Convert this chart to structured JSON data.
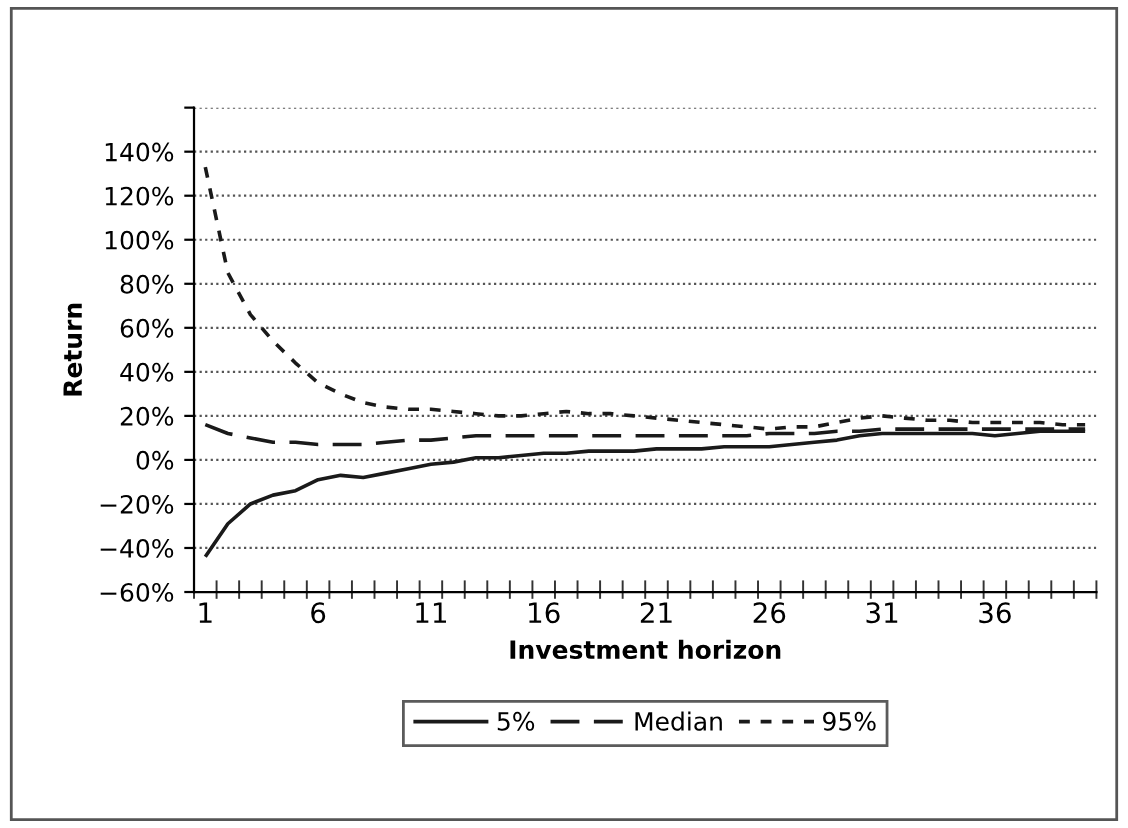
{
  "chart_data": {
    "type": "line",
    "categories": [
      "1",
      null,
      null,
      null,
      null,
      "6",
      null,
      null,
      null,
      null,
      "11",
      null,
      null,
      null,
      null,
      "16",
      null,
      null,
      null,
      null,
      "21",
      null,
      null,
      null,
      null,
      "26",
      null,
      null,
      null,
      null,
      "31",
      null,
      null,
      null,
      null,
      "36",
      null,
      null,
      null,
      null
    ],
    "series": [
      {
        "name": "5%",
        "color": "#1a1a1a",
        "line_style": "solid",
        "values": [
          -44,
          -29,
          -20,
          -16,
          -14,
          -9,
          -7,
          -8,
          -6,
          -4,
          -2,
          -1,
          1,
          1,
          2,
          3,
          3,
          4,
          4,
          4,
          5,
          5,
          5,
          6,
          6,
          6,
          7,
          8,
          9,
          11,
          12,
          12,
          12,
          12,
          12,
          11,
          12,
          13,
          13,
          13
        ]
      },
      {
        "name": "Median",
        "color": "#1a1a1a",
        "line_style": "dashed",
        "values": [
          16,
          12,
          10,
          8,
          8,
          7,
          7,
          7,
          8,
          9,
          9,
          10,
          11,
          11,
          11,
          11,
          11,
          11,
          11,
          11,
          11,
          11,
          11,
          11,
          11,
          12,
          12,
          12,
          13,
          13,
          14,
          14,
          14,
          14,
          14,
          14,
          14,
          14,
          14,
          14
        ]
      },
      {
        "name": "95%",
        "color": "#1a1a1a",
        "line_style": "dotted",
        "values": [
          133,
          85,
          66,
          54,
          44,
          35,
          30,
          26,
          24,
          23,
          23,
          22,
          21,
          20,
          20,
          21,
          22,
          21,
          21,
          20,
          19,
          18,
          17,
          16,
          15,
          14,
          15,
          15,
          17,
          19,
          20,
          19,
          18,
          18,
          17,
          17,
          17,
          17,
          16,
          16
        ]
      }
    ],
    "xlabel": "Investment horizon",
    "ylabel": "Return",
    "ylim": [
      -60,
      160
    ],
    "yticks": [
      {
        "value": -60,
        "label": "−60%"
      },
      {
        "value": -40,
        "label": "−40%"
      },
      {
        "value": -20,
        "label": "−20%"
      },
      {
        "value": 0,
        "label": "0%"
      },
      {
        "value": 20,
        "label": "20%"
      },
      {
        "value": 40,
        "label": "40%"
      },
      {
        "value": 60,
        "label": "60%"
      },
      {
        "value": 80,
        "label": "80%"
      },
      {
        "value": 100,
        "label": "100%"
      },
      {
        "value": 120,
        "label": "120%"
      },
      {
        "value": 140,
        "label": "140%"
      },
      {
        "value": 160,
        "label": null
      }
    ],
    "grid": "y",
    "legend": "bottom"
  }
}
